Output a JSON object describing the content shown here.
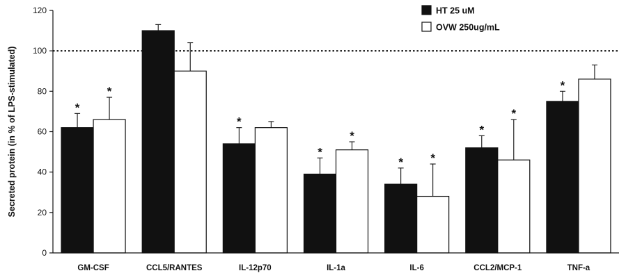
{
  "chart_data": {
    "type": "bar",
    "title": "",
    "xlabel": "",
    "ylabel": "Secreted protein (in % of LPS-stimulated)",
    "ylim": [
      0,
      120
    ],
    "yticks": [
      0,
      20,
      40,
      60,
      80,
      100,
      120
    ],
    "categories": [
      "GM-CSF",
      "CCL5/RANTES",
      "IL-12p70",
      "IL-1a",
      "IL-6",
      "CCL2/MCP-1",
      "TNF-a"
    ],
    "series": [
      {
        "name": "HT 25 uM",
        "color": "#111111",
        "values": [
          62,
          110,
          54,
          39,
          34,
          52,
          75
        ],
        "errors": [
          7,
          3,
          8,
          8,
          8,
          6,
          5
        ],
        "significant": [
          true,
          false,
          true,
          true,
          true,
          true,
          true
        ]
      },
      {
        "name": "OVW 250ug/mL",
        "color": "#ffffff",
        "values": [
          66,
          90,
          62,
          51,
          28,
          46,
          86
        ],
        "errors": [
          11,
          14,
          3,
          4,
          16,
          20,
          7
        ],
        "significant": [
          true,
          false,
          false,
          true,
          true,
          true,
          false
        ]
      }
    ],
    "reference_line": {
      "value": 100,
      "style": "dotted"
    },
    "significance_marker": "*",
    "legend": "top-right",
    "grid": false
  }
}
